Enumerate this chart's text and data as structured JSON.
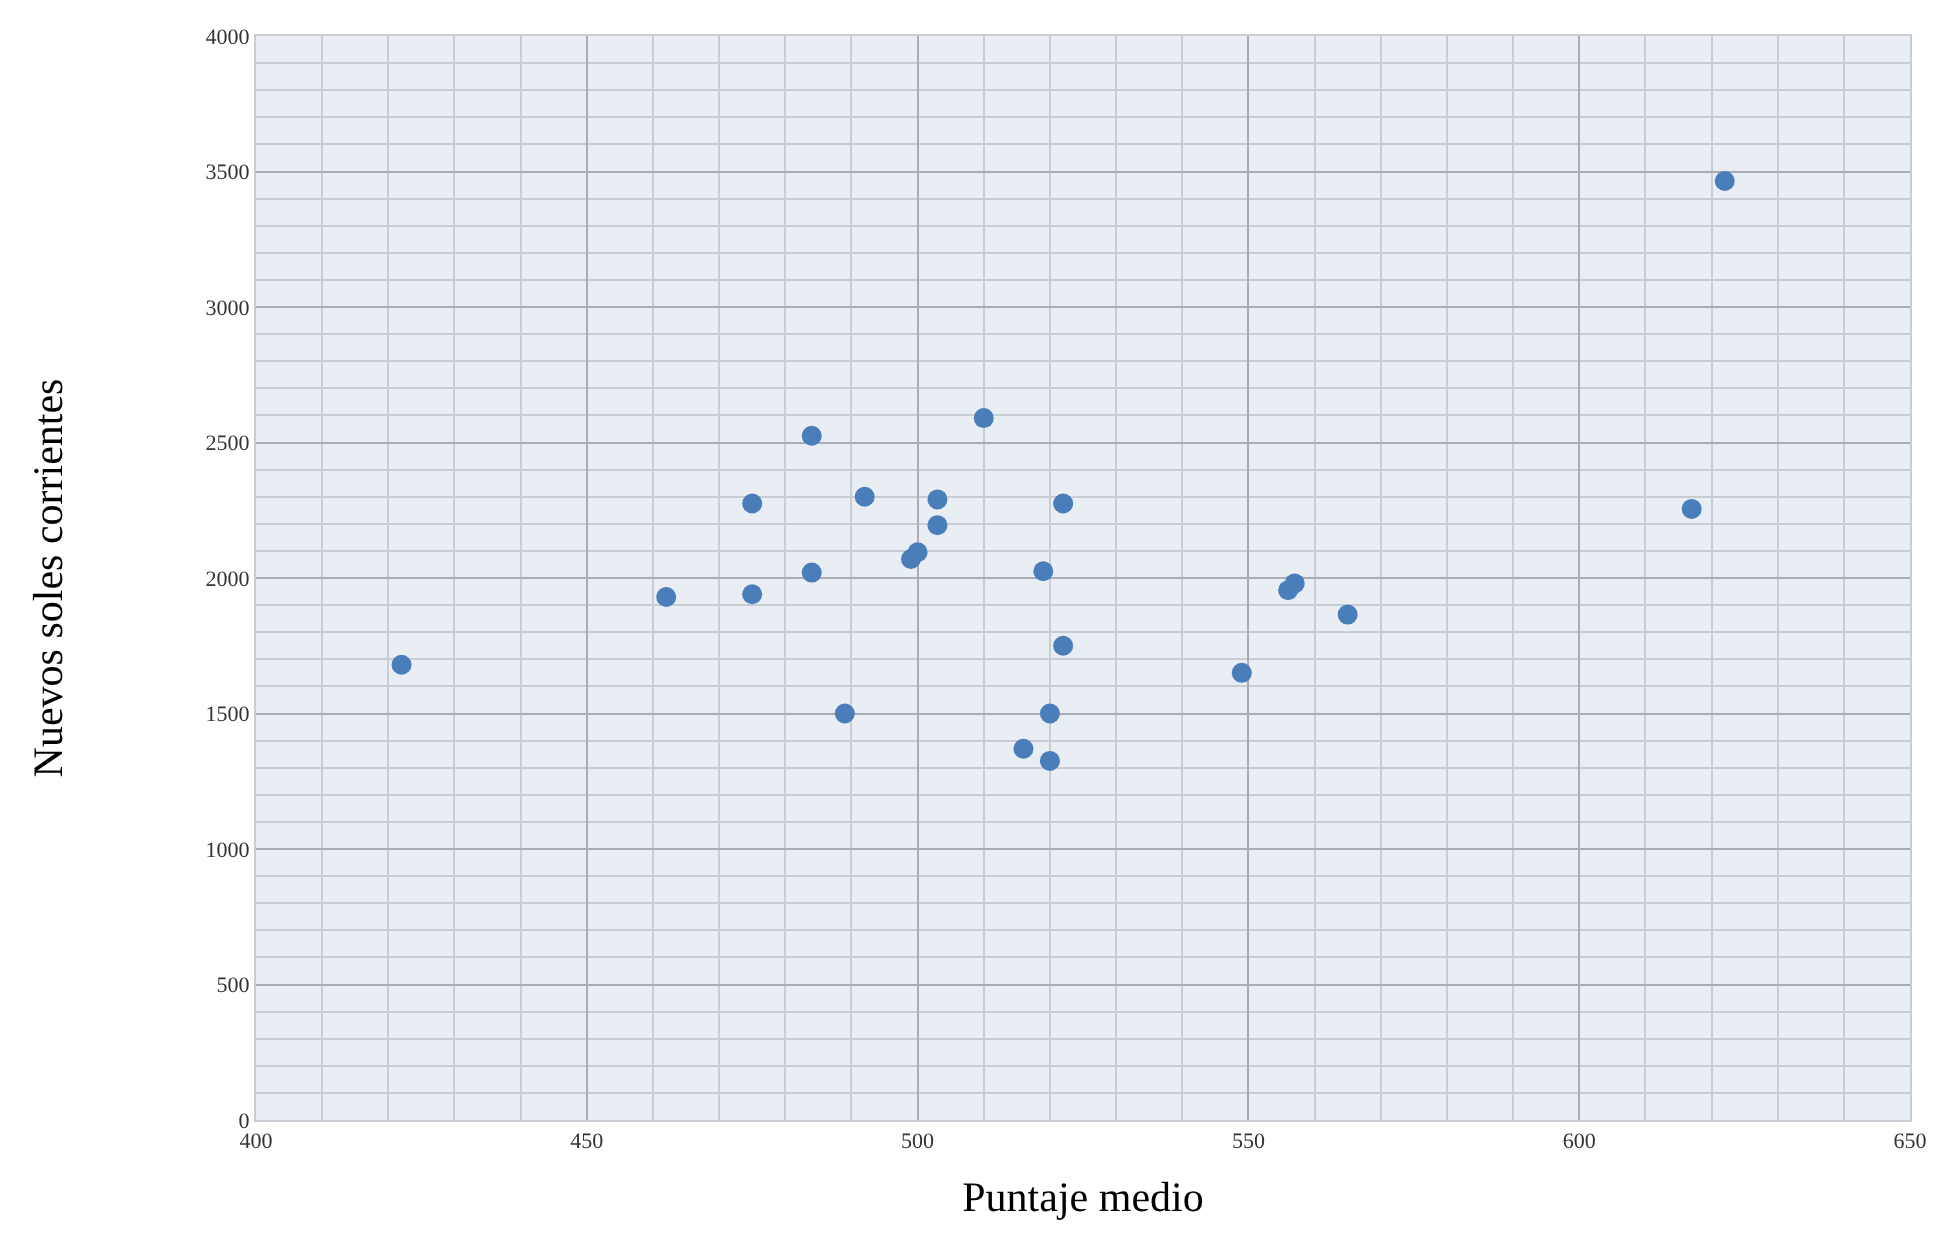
{
  "chart_data": {
    "type": "scatter",
    "xlabel": "Puntaje medio",
    "ylabel": "Nuevos soles corrientes",
    "x": [
      422,
      462,
      475,
      475,
      484,
      484,
      492,
      489,
      503,
      503,
      499,
      500,
      510,
      519,
      522,
      522,
      520,
      516,
      520,
      549,
      556,
      557,
      565,
      617,
      622
    ],
    "series": [
      {
        "color": "#4a7ebb",
        "values": [
          1680,
          1930,
          2275,
          1940,
          2525,
          2020,
          2300,
          1500,
          2290,
          2195,
          2070,
          2095,
          2590,
          2025,
          2275,
          1750,
          1500,
          1370,
          1325,
          1650,
          1955,
          1980,
          1865,
          2255,
          3465
        ]
      }
    ],
    "xlim": [
      400,
      650
    ],
    "ylim": [
      0,
      4000
    ],
    "xticks": [
      400,
      {
        "value": 410,
        "label": null
      },
      {
        "value": 420,
        "label": null
      },
      {
        "value": 430,
        "label": null
      },
      {
        "value": 440,
        "label": null
      },
      450,
      {
        "value": 460,
        "label": null
      },
      {
        "value": 470,
        "label": null
      },
      {
        "value": 480,
        "label": null
      },
      {
        "value": 490,
        "label": null
      },
      500,
      {
        "value": 510,
        "label": null
      },
      {
        "value": 520,
        "label": null
      },
      {
        "value": 530,
        "label": null
      },
      {
        "value": 540,
        "label": null
      },
      550,
      {
        "value": 560,
        "label": null
      },
      {
        "value": 570,
        "label": null
      },
      {
        "value": 580,
        "label": null
      },
      {
        "value": 590,
        "label": null
      },
      600,
      {
        "value": 610,
        "label": null
      },
      {
        "value": 620,
        "label": null
      },
      {
        "value": 630,
        "label": null
      },
      {
        "value": 640,
        "label": null
      },
      650
    ],
    "yticks": [
      0,
      {
        "value": 100,
        "label": null
      },
      {
        "value": 200,
        "label": null
      },
      {
        "value": 300,
        "label": null
      },
      {
        "value": 400,
        "label": null
      },
      500,
      {
        "value": 600,
        "label": null
      },
      {
        "value": 700,
        "label": null
      },
      {
        "value": 800,
        "label": null
      },
      {
        "value": 900,
        "label": null
      },
      1000,
      {
        "value": 1100,
        "label": null
      },
      {
        "value": 1200,
        "label": null
      },
      {
        "value": 1300,
        "label": null
      },
      {
        "value": 1400,
        "label": null
      },
      1500,
      {
        "value": 1600,
        "label": null
      },
      {
        "value": 1700,
        "label": null
      },
      {
        "value": 1800,
        "label": null
      },
      {
        "value": 1900,
        "label": null
      },
      2000,
      {
        "value": 2100,
        "label": null
      },
      {
        "value": 2200,
        "label": null
      },
      {
        "value": 2300,
        "label": null
      },
      {
        "value": 2400,
        "label": null
      },
      2500,
      {
        "value": 2600,
        "label": null
      },
      {
        "value": 2700,
        "label": null
      },
      {
        "value": 2800,
        "label": null
      },
      {
        "value": 2900,
        "label": null
      },
      3000,
      {
        "value": 3100,
        "label": null
      },
      {
        "value": 3200,
        "label": null
      },
      {
        "value": 3300,
        "label": null
      },
      {
        "value": 3400,
        "label": null
      },
      3500,
      {
        "value": 3600,
        "label": null
      },
      {
        "value": 3700,
        "label": null
      },
      {
        "value": 3800,
        "label": null
      },
      {
        "value": 3900,
        "label": null
      },
      4000
    ],
    "grid": true,
    "marker": "circle"
  }
}
